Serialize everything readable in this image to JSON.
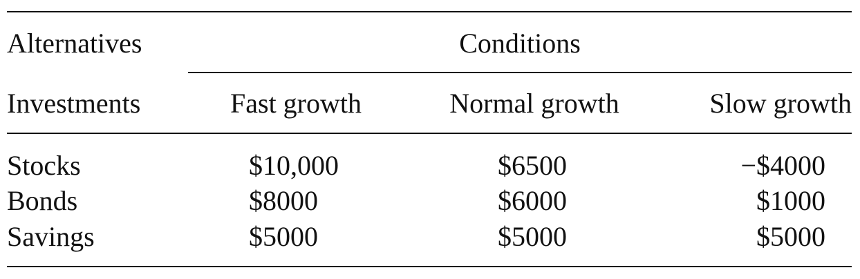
{
  "table": {
    "header": {
      "alternatives_label": "Alternatives",
      "conditions_label": "Conditions",
      "investments_label": "Investments",
      "columns": [
        "Fast growth",
        "Normal growth",
        "Slow growth"
      ]
    },
    "rows": [
      {
        "label": "Stocks",
        "values": [
          "$10,000",
          "$6500",
          "−$4000"
        ]
      },
      {
        "label": "Bonds",
        "values": [
          "$8000",
          "$6000",
          "$1000"
        ]
      },
      {
        "label": "Savings",
        "values": [
          "$5000",
          "$5000",
          "$5000"
        ]
      }
    ]
  }
}
